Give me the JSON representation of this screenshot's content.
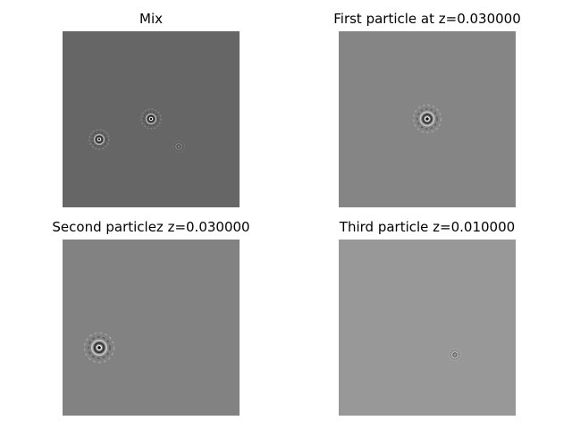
{
  "panels": [
    {
      "title": "Mix"
    },
    {
      "title": "First particle at z=0.030000"
    },
    {
      "title": "Second particlez z=0.030000"
    },
    {
      "title": "Third particle z=0.010000"
    }
  ]
}
